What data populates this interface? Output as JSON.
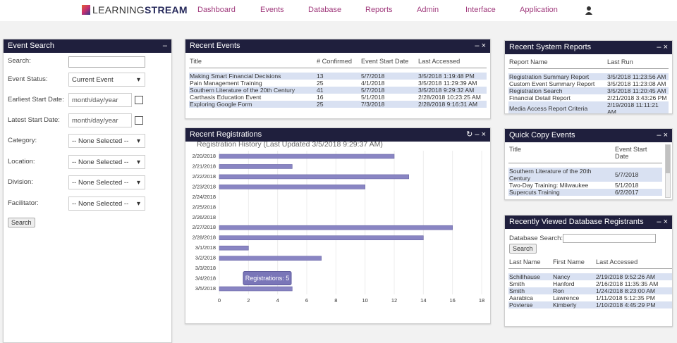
{
  "nav": {
    "logo_light": "LEARNING",
    "logo_bold": "STREAM",
    "items": [
      "Dashboard",
      "Events",
      "Database",
      "Reports",
      "Admin",
      "Interface",
      "Application"
    ]
  },
  "event_search": {
    "title": "Event Search",
    "fields": [
      {
        "label": "Search:"
      },
      {
        "label": "Event Status:",
        "value": "Current Event"
      },
      {
        "label": "Earliest Start Date:",
        "placeholder": "month/day/year"
      },
      {
        "label": "Latest Start Date:",
        "placeholder": "month/day/year"
      },
      {
        "label": "Category:",
        "value": "-- None Selected --"
      },
      {
        "label": "Location:",
        "value": "-- None Selected --"
      },
      {
        "label": "Division:",
        "value": "-- None Selected --"
      },
      {
        "label": "Facilitator:",
        "value": "-- None Selected --"
      }
    ],
    "button": "Search"
  },
  "recent_events": {
    "title": "Recent Events",
    "columns": [
      "Title",
      "# Confirmed",
      "Event Start Date",
      "Last Accessed"
    ],
    "rows": [
      [
        "Making Smart Financial Decisions",
        13,
        "5/7/2018",
        "3/5/2018 1:19:48 PM"
      ],
      [
        "Pain Management Training",
        25,
        "4/1/2018",
        "3/5/2018 11:29:39 AM"
      ],
      [
        "Southern Literature of the 20th Century",
        41,
        "5/7/2018",
        "3/5/2018 9:29:32 AM"
      ],
      [
        "Carthasis Education Event",
        16,
        "5/1/2018",
        "2/28/2018 10:23:25 AM"
      ],
      [
        "Exploring Google Form",
        25,
        "7/3/2018",
        "2/28/2018 9:16:31 AM"
      ]
    ]
  },
  "recent_registrations": {
    "title": "Recent Registrations"
  },
  "chart_data": {
    "type": "bar",
    "orientation": "horizontal",
    "title": "Registration History (Last Updated 3/5/2018 9:29:37 AM)",
    "categories": [
      "2/20/2018",
      "2/21/2018",
      "2/22/2018",
      "2/23/2018",
      "2/24/2018",
      "2/25/2018",
      "2/26/2018",
      "2/27/2018",
      "2/28/2018",
      "3/1/2018",
      "3/2/2018",
      "3/3/2018",
      "3/4/2018",
      "3/5/2018"
    ],
    "values": [
      12,
      5,
      13,
      10,
      0,
      0,
      0,
      16,
      14,
      2,
      7,
      0,
      0,
      5
    ],
    "color": "#8985c3",
    "xlim": [
      0,
      18
    ],
    "xticks": [
      0,
      2,
      4,
      6,
      8,
      10,
      12,
      14,
      16,
      18
    ],
    "grid": true,
    "tooltip": "Registrations: 5"
  },
  "system_reports": {
    "title": "Recent System Reports",
    "columns": [
      "Report Name",
      "Last Run"
    ],
    "rows": [
      [
        "Registration Summary Report",
        "3/5/2018 11:23:56 AM"
      ],
      [
        "Custom Event Summary Report",
        "3/5/2018 11:23:08 AM"
      ],
      [
        "Registration Search",
        "3/5/2018 11:20:45 AM"
      ],
      [
        "Financial Detail Report",
        "2/21/2018 3:43:26 PM"
      ],
      [
        "Media Access Report Criteria",
        "2/19/2018 11:11:21 AM"
      ]
    ]
  },
  "quick_copy": {
    "title": "Quick Copy Events",
    "columns": [
      "Title",
      "Event Start Date"
    ],
    "rows": [
      [
        "Southern Literature of the 20th Century",
        "5/7/2018"
      ],
      [
        "Two-Day Training: Milwaukee",
        "5/1/2018"
      ],
      [
        "Supercuts Training",
        "6/2/2017"
      ]
    ]
  },
  "registrants": {
    "title": "Recently Viewed Database Registrants",
    "search_label": "Database Search:",
    "button": "Search",
    "columns": [
      "Last Name",
      "First Name",
      "Last Accessed"
    ],
    "rows": [
      [
        "Schillhause",
        "Nancy",
        "2/19/2018 9:52:26 AM"
      ],
      [
        "Smith",
        "Hanford",
        "2/16/2018 11:35:35 AM"
      ],
      [
        "Smith",
        "Ron",
        "1/24/2018 8:23:00 AM"
      ],
      [
        "Aarabica",
        "Lawrence",
        "1/11/2018 5:12:35 PM"
      ],
      [
        "Poviersе",
        "Kimberly",
        "1/10/2018 4:45:29 PM"
      ]
    ]
  }
}
